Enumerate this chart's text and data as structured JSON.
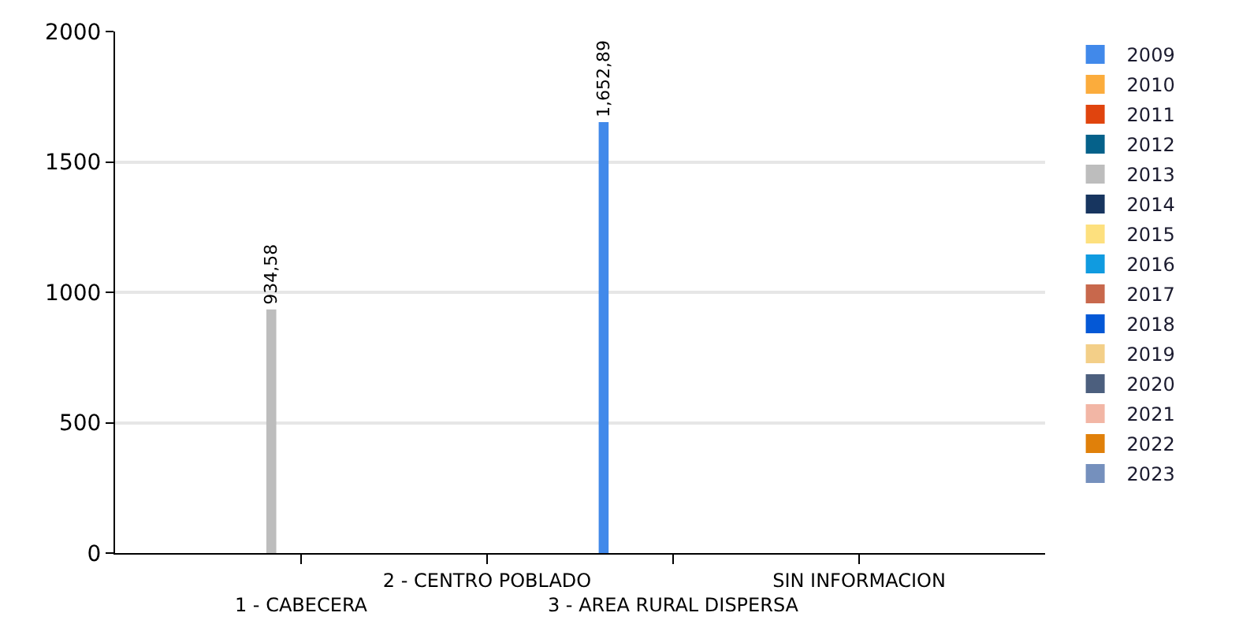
{
  "chart_data": {
    "type": "bar",
    "categories": [
      "1 - CABECERA",
      "2 - CENTRO POBLADO",
      "3 - AREA RURAL DISPERSA",
      "SIN INFORMACION"
    ],
    "series": [
      {
        "name": "2009",
        "color": "#4189ea",
        "values": [
          null,
          null,
          1652.89,
          null
        ],
        "value_labels": [
          null,
          null,
          "1,652,89",
          null
        ]
      },
      {
        "name": "2010",
        "color": "#fbac3c",
        "values": [
          null,
          null,
          null,
          null
        ]
      },
      {
        "name": "2011",
        "color": "#e0440e",
        "values": [
          null,
          null,
          null,
          null
        ]
      },
      {
        "name": "2012",
        "color": "#05618a",
        "values": [
          null,
          null,
          null,
          null
        ]
      },
      {
        "name": "2013",
        "color": "#bdbdbd",
        "values": [
          934.58,
          null,
          null,
          null
        ],
        "value_labels": [
          "934,58",
          null,
          null,
          null
        ]
      },
      {
        "name": "2014",
        "color": "#17355f",
        "values": [
          null,
          null,
          null,
          null
        ]
      },
      {
        "name": "2015",
        "color": "#fde07e",
        "values": [
          null,
          null,
          null,
          null
        ]
      },
      {
        "name": "2016",
        "color": "#109be0",
        "values": [
          null,
          null,
          null,
          null
        ]
      },
      {
        "name": "2017",
        "color": "#c8684c",
        "values": [
          null,
          null,
          null,
          null
        ]
      },
      {
        "name": "2018",
        "color": "#0458d6",
        "values": [
          null,
          null,
          null,
          null
        ]
      },
      {
        "name": "2019",
        "color": "#f3cf88",
        "values": [
          null,
          null,
          null,
          null
        ]
      },
      {
        "name": "2020",
        "color": "#4c5f7e",
        "values": [
          null,
          null,
          null,
          null
        ]
      },
      {
        "name": "2021",
        "color": "#f2b6a5",
        "values": [
          null,
          null,
          null,
          null
        ]
      },
      {
        "name": "2022",
        "color": "#e0800a",
        "values": [
          null,
          null,
          null,
          null
        ]
      },
      {
        "name": "2023",
        "color": "#7590bd",
        "values": [
          null,
          null,
          null,
          null
        ]
      }
    ],
    "ylim": [
      0,
      2000
    ],
    "yticks": [
      0,
      500,
      1000,
      1500,
      2000
    ],
    "grid": "y",
    "legend": "right"
  }
}
